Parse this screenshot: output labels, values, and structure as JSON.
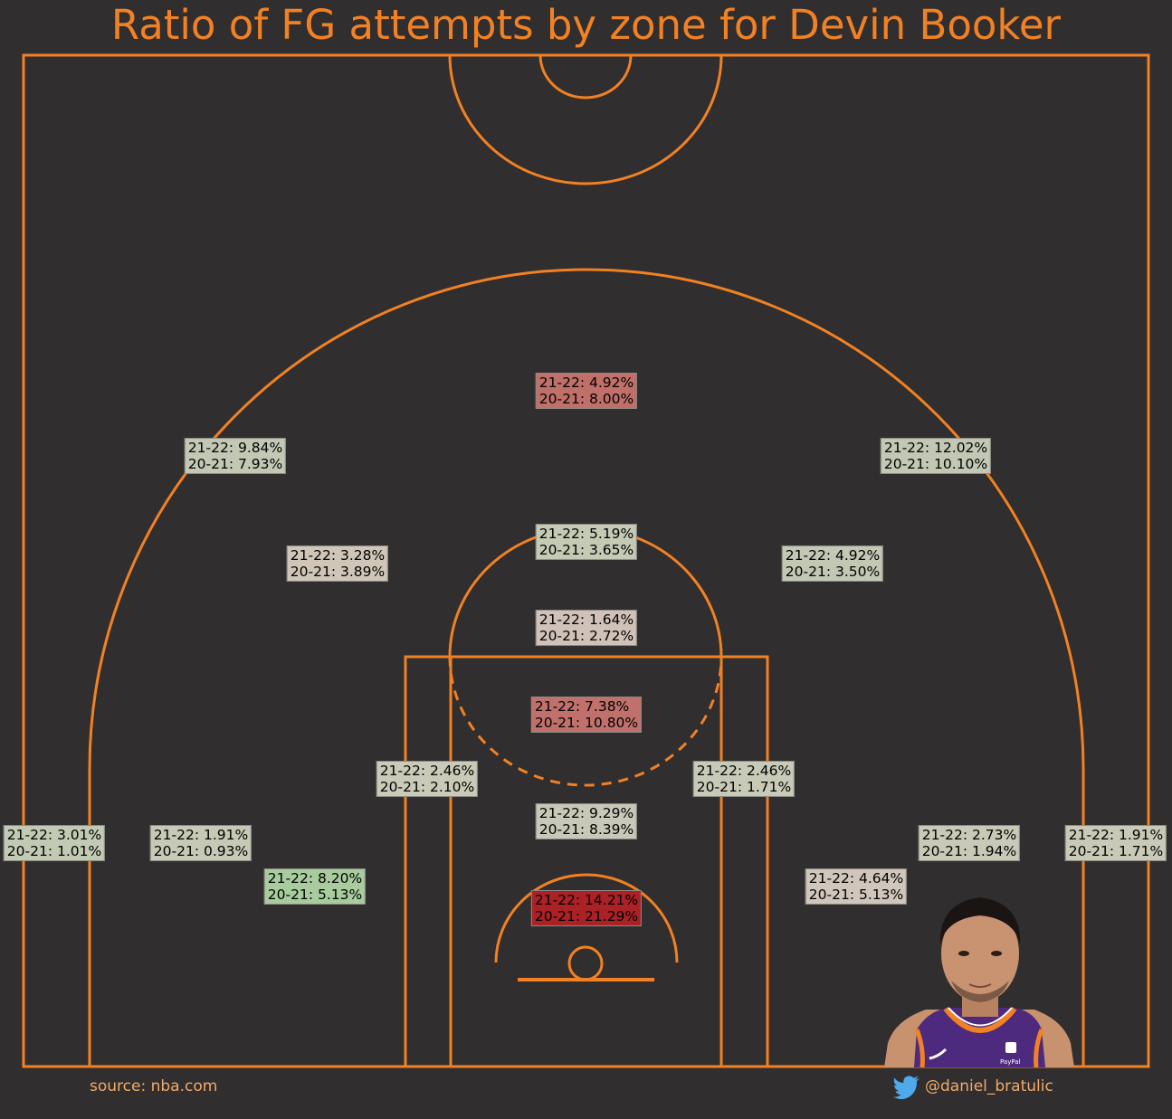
{
  "title": "Ratio of FG attempts by zone for Devin Booker",
  "source": "source: nba.com",
  "handle": "@daniel_bratulic",
  "colors": {
    "background": "#302e2e",
    "court_lines": "#f28123",
    "footer_text": "#f2a96a"
  },
  "chart_data": {
    "type": "heatmap",
    "title": "Ratio of FG attempts by zone for Devin Booker",
    "value_unit": "% of FG attempts",
    "seasons": [
      "21-22",
      "20-21"
    ],
    "zones": [
      {
        "label1": "21-22: 4.92%",
        "label2": "20-21: 8.00%",
        "v2122": 4.92,
        "v2021": 8.0,
        "color": "#c07068"
      },
      {
        "label1": "21-22: 9.84%",
        "label2": "20-21: 7.93%",
        "v2122": 9.84,
        "v2021": 7.93,
        "color": "#c2c8b4"
      },
      {
        "label1": "21-22: 12.02%",
        "label2": "20-21: 10.10%",
        "v2122": 12.02,
        "v2021": 10.1,
        "color": "#c2c8b4"
      },
      {
        "label1": "21-22: 5.19%",
        "label2": "20-21: 3.65%",
        "v2122": 5.19,
        "v2021": 3.65,
        "color": "#c5cab4"
      },
      {
        "label1": "21-22: 3.28%",
        "label2": "20-21: 3.89%",
        "v2122": 3.28,
        "v2021": 3.89,
        "color": "#cfc6b8"
      },
      {
        "label1": "21-22: 4.92%",
        "label2": "20-21: 3.50%",
        "v2122": 4.92,
        "v2021": 3.5,
        "color": "#c2c8b4"
      },
      {
        "label1": "21-22: 1.64%",
        "label2": "20-21: 2.72%",
        "v2122": 1.64,
        "v2021": 2.72,
        "color": "#d0c2b8"
      },
      {
        "label1": "21-22: 7.38%",
        "label2": "20-21: 10.80%",
        "v2122": 7.38,
        "v2021": 10.8,
        "color": "#c1716c"
      },
      {
        "label1": "21-22: 2.46%",
        "label2": "20-21: 2.10%",
        "v2122": 2.46,
        "v2021": 2.1,
        "color": "#cacab8"
      },
      {
        "label1": "21-22: 2.46%",
        "label2": "20-21: 1.71%",
        "v2122": 2.46,
        "v2021": 1.71,
        "color": "#c8cab8"
      },
      {
        "label1": "21-22: 9.29%",
        "label2": "20-21: 8.39%",
        "v2122": 9.29,
        "v2021": 8.39,
        "color": "#c8c8b8"
      },
      {
        "label1": "21-22: 3.01%",
        "label2": "20-21: 1.01%",
        "v2122": 3.01,
        "v2021": 1.01,
        "color": "#c2cab4"
      },
      {
        "label1": "21-22: 1.91%",
        "label2": "20-21: 0.93%",
        "v2122": 1.91,
        "v2021": 0.93,
        "color": "#c5c9b6"
      },
      {
        "label1": "21-22: 8.20%",
        "label2": "20-21: 5.13%",
        "v2122": 8.2,
        "v2021": 5.13,
        "color": "#a8cc9e"
      },
      {
        "label1": "21-22: 2.73%",
        "label2": "20-21: 1.94%",
        "v2122": 2.73,
        "v2021": 1.94,
        "color": "#c9c9b8"
      },
      {
        "label1": "21-22: 1.91%",
        "label2": "20-21: 1.71%",
        "v2122": 1.91,
        "v2021": 1.71,
        "color": "#c9c9b8"
      },
      {
        "label1": "21-22: 4.64%",
        "label2": "20-21: 5.13%",
        "v2122": 4.64,
        "v2021": 5.13,
        "color": "#d0c6bc"
      },
      {
        "label1": "21-22: 14.21%",
        "label2": "20-21: 21.29%",
        "v2122": 14.21,
        "v2021": 21.29,
        "color": "#aa2126"
      }
    ]
  }
}
